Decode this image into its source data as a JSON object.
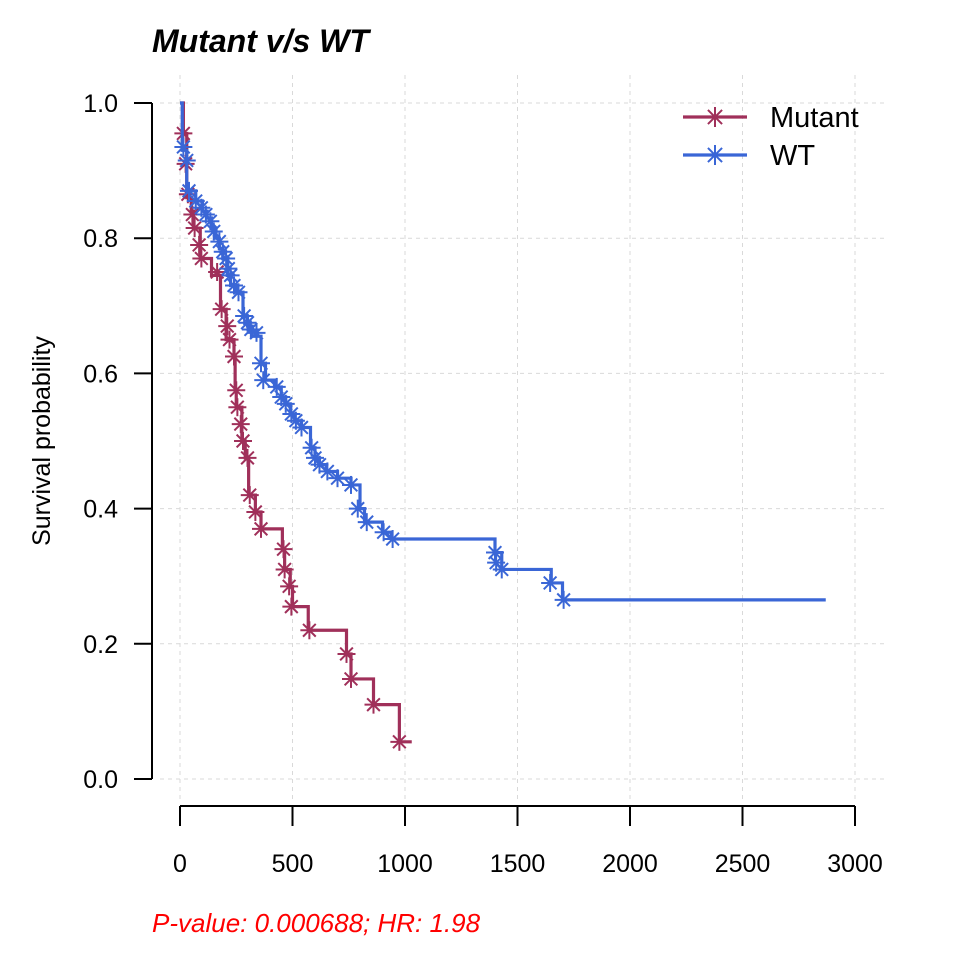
{
  "chart_data": {
    "type": "line",
    "subtype": "kaplan-meier",
    "title": "Mutant v/s WT",
    "xlabel": "",
    "ylabel": "Survival probability",
    "xlim": [
      0,
      3000
    ],
    "ylim": [
      0,
      1
    ],
    "x_ticks": [
      "0",
      "500",
      "1000",
      "1500",
      "2000",
      "2500",
      "3000"
    ],
    "y_ticks": [
      "0.0",
      "0.2",
      "0.4",
      "0.6",
      "0.8",
      "1.0"
    ],
    "grid": true,
    "legend": {
      "position": "top-right",
      "entries": [
        "Mutant",
        "WT"
      ]
    },
    "footnote": "P-value: 0.000688; HR: 1.98",
    "series": [
      {
        "name": "Mutant",
        "color": "#a0305a",
        "steps": [
          [
            0,
            1.0
          ],
          [
            15,
            0.955
          ],
          [
            30,
            0.86
          ],
          [
            50,
            0.84
          ],
          [
            60,
            0.815
          ],
          [
            90,
            0.77
          ],
          [
            140,
            0.745
          ],
          [
            180,
            0.695
          ],
          [
            205,
            0.65
          ],
          [
            240,
            0.625
          ],
          [
            245,
            0.575
          ],
          [
            250,
            0.55
          ],
          [
            275,
            0.5
          ],
          [
            290,
            0.475
          ],
          [
            305,
            0.42
          ],
          [
            335,
            0.395
          ],
          [
            360,
            0.37
          ],
          [
            455,
            0.34
          ],
          [
            465,
            0.31
          ],
          [
            490,
            0.285
          ],
          [
            500,
            0.255
          ],
          [
            570,
            0.22
          ],
          [
            740,
            0.185
          ],
          [
            760,
            0.148
          ],
          [
            860,
            0.11
          ],
          [
            975,
            0.055
          ],
          [
            1030,
            0.055
          ]
        ],
        "censor": [
          [
            15,
            0.955
          ],
          [
            25,
            0.91
          ],
          [
            35,
            0.865
          ],
          [
            55,
            0.835
          ],
          [
            65,
            0.815
          ],
          [
            85,
            0.79
          ],
          [
            95,
            0.77
          ],
          [
            165,
            0.75
          ],
          [
            185,
            0.695
          ],
          [
            210,
            0.67
          ],
          [
            220,
            0.65
          ],
          [
            240,
            0.625
          ],
          [
            250,
            0.575
          ],
          [
            255,
            0.55
          ],
          [
            270,
            0.525
          ],
          [
            280,
            0.5
          ],
          [
            300,
            0.475
          ],
          [
            310,
            0.42
          ],
          [
            335,
            0.395
          ],
          [
            360,
            0.37
          ],
          [
            460,
            0.34
          ],
          [
            465,
            0.31
          ],
          [
            485,
            0.285
          ],
          [
            495,
            0.255
          ],
          [
            575,
            0.22
          ],
          [
            740,
            0.185
          ],
          [
            760,
            0.148
          ],
          [
            860,
            0.11
          ],
          [
            975,
            0.055
          ]
        ]
      },
      {
        "name": "WT",
        "color": "#3a66d6",
        "steps": [
          [
            0,
            1.0
          ],
          [
            10,
            0.93
          ],
          [
            30,
            0.87
          ],
          [
            70,
            0.855
          ],
          [
            100,
            0.84
          ],
          [
            120,
            0.83
          ],
          [
            140,
            0.815
          ],
          [
            160,
            0.8
          ],
          [
            175,
            0.785
          ],
          [
            190,
            0.77
          ],
          [
            210,
            0.745
          ],
          [
            225,
            0.73
          ],
          [
            250,
            0.72
          ],
          [
            280,
            0.685
          ],
          [
            300,
            0.67
          ],
          [
            320,
            0.655
          ],
          [
            360,
            0.615
          ],
          [
            380,
            0.59
          ],
          [
            420,
            0.58
          ],
          [
            450,
            0.565
          ],
          [
            470,
            0.555
          ],
          [
            490,
            0.54
          ],
          [
            510,
            0.53
          ],
          [
            540,
            0.52
          ],
          [
            580,
            0.49
          ],
          [
            600,
            0.475
          ],
          [
            620,
            0.465
          ],
          [
            650,
            0.455
          ],
          [
            700,
            0.445
          ],
          [
            760,
            0.435
          ],
          [
            800,
            0.4
          ],
          [
            820,
            0.38
          ],
          [
            900,
            0.365
          ],
          [
            940,
            0.355
          ],
          [
            1400,
            0.335
          ],
          [
            1430,
            0.31
          ],
          [
            1650,
            0.29
          ],
          [
            1700,
            0.265
          ],
          [
            2870,
            0.265
          ]
        ],
        "censor": [
          [
            15,
            0.935
          ],
          [
            30,
            0.915
          ],
          [
            40,
            0.87
          ],
          [
            70,
            0.855
          ],
          [
            95,
            0.845
          ],
          [
            115,
            0.835
          ],
          [
            135,
            0.825
          ],
          [
            150,
            0.81
          ],
          [
            175,
            0.795
          ],
          [
            190,
            0.78
          ],
          [
            205,
            0.77
          ],
          [
            215,
            0.755
          ],
          [
            225,
            0.745
          ],
          [
            240,
            0.73
          ],
          [
            260,
            0.72
          ],
          [
            285,
            0.685
          ],
          [
            300,
            0.675
          ],
          [
            315,
            0.665
          ],
          [
            340,
            0.66
          ],
          [
            360,
            0.615
          ],
          [
            370,
            0.59
          ],
          [
            430,
            0.58
          ],
          [
            450,
            0.565
          ],
          [
            470,
            0.555
          ],
          [
            495,
            0.54
          ],
          [
            515,
            0.53
          ],
          [
            540,
            0.52
          ],
          [
            585,
            0.49
          ],
          [
            600,
            0.475
          ],
          [
            620,
            0.465
          ],
          [
            655,
            0.455
          ],
          [
            700,
            0.445
          ],
          [
            760,
            0.435
          ],
          [
            790,
            0.4
          ],
          [
            830,
            0.38
          ],
          [
            905,
            0.365
          ],
          [
            945,
            0.355
          ],
          [
            1400,
            0.335
          ],
          [
            1405,
            0.32
          ],
          [
            1430,
            0.31
          ],
          [
            1645,
            0.29
          ],
          [
            1705,
            0.265
          ]
        ]
      }
    ]
  }
}
